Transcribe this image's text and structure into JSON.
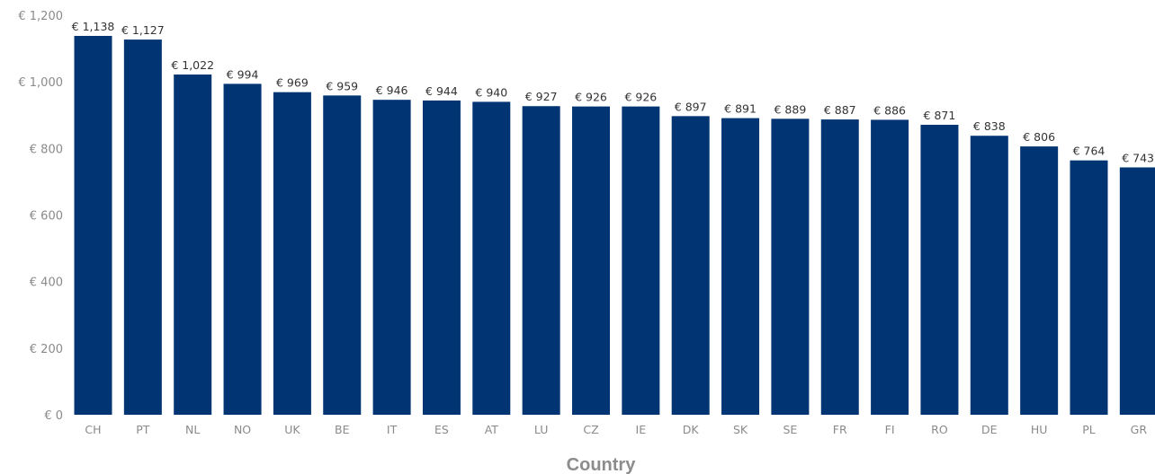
{
  "chart_data": {
    "type": "bar",
    "title": "",
    "xlabel": "Country",
    "ylabel": "",
    "ylim": [
      0,
      1200
    ],
    "yticks": [
      0,
      200,
      400,
      600,
      800,
      1000,
      1200
    ],
    "ytick_labels": [
      "€ 0",
      "€ 200",
      "€ 400",
      "€ 600",
      "€ 800",
      "€ 1,000",
      "€ 1,200"
    ],
    "grid": false,
    "legend": "none",
    "categories": [
      "CH",
      "PT",
      "NL",
      "NO",
      "UK",
      "BE",
      "IT",
      "ES",
      "AT",
      "LU",
      "CZ",
      "IE",
      "DK",
      "SK",
      "SE",
      "FR",
      "FI",
      "RO",
      "DE",
      "HU",
      "PL",
      "GR"
    ],
    "values": [
      1138,
      1127,
      1022,
      994,
      969,
      959,
      946,
      944,
      940,
      927,
      926,
      926,
      897,
      891,
      889,
      887,
      886,
      871,
      838,
      806,
      764,
      743
    ],
    "data_labels": [
      "€ 1,138",
      "€ 1,127",
      "€ 1,022",
      "€ 994",
      "€ 969",
      "€ 959",
      "€ 946",
      "€ 944",
      "€ 940",
      "€ 927",
      "€ 926",
      "€ 926",
      "€ 897",
      "€ 891",
      "€ 889",
      "€ 887",
      "€ 886",
      "€ 871",
      "€ 838",
      "€ 806",
      "€ 764",
      "€ 743"
    ],
    "colors": {
      "bar": "#003473",
      "tick_text": "#8a8a8a",
      "cat_text": "#8a8a8a",
      "data_label_text": "#333333",
      "axis_title": "#8c8c8c"
    }
  }
}
